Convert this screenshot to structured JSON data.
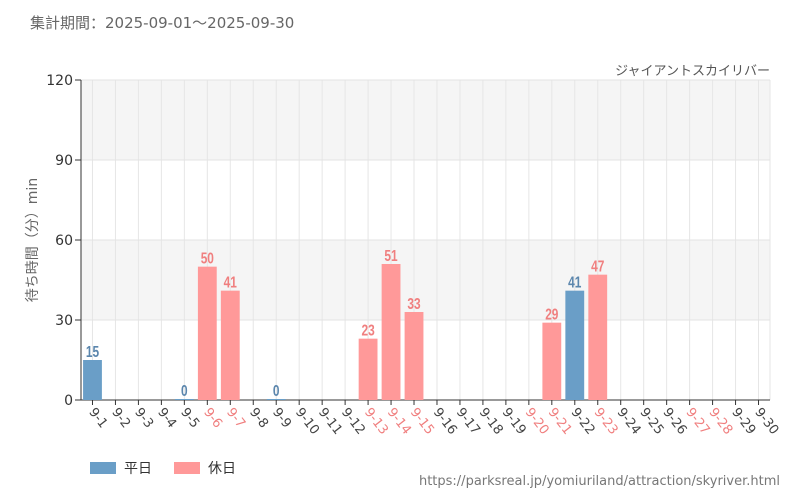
{
  "header": {
    "period_label": "集計期間：2025-09-01～2025-09-30",
    "attraction_name": "ジャイアントスカイリバー"
  },
  "source_url": "https://parksreal.jp/yomiuriland/attraction/skyriver.html",
  "chart_data": {
    "type": "bar",
    "ylabel": "待ち時間（分）min",
    "ylim": [
      0,
      120
    ],
    "yticks": [
      0,
      30,
      60,
      90,
      120
    ],
    "categories": [
      "9-1",
      "9-2",
      "9-3",
      "9-4",
      "9-5",
      "9-6",
      "9-7",
      "9-8",
      "9-9",
      "9-10",
      "9-11",
      "9-12",
      "9-13",
      "9-14",
      "9-15",
      "9-16",
      "9-17",
      "9-18",
      "9-19",
      "9-20",
      "9-21",
      "9-22",
      "9-23",
      "9-24",
      "9-25",
      "9-26",
      "9-27",
      "9-28",
      "9-29",
      "9-30"
    ],
    "values": [
      15,
      null,
      null,
      null,
      0,
      50,
      41,
      null,
      0,
      null,
      null,
      null,
      23,
      51,
      33,
      null,
      null,
      null,
      null,
      null,
      29,
      41,
      47,
      null,
      null,
      null,
      null,
      null,
      null,
      null
    ],
    "day_type": [
      "weekday",
      "weekday",
      "weekday",
      "weekday",
      "weekday",
      "holiday",
      "holiday",
      "weekday",
      "weekday",
      "weekday",
      "weekday",
      "weekday",
      "holiday",
      "holiday",
      "holiday",
      "weekday",
      "weekday",
      "weekday",
      "weekday",
      "holiday",
      "holiday",
      "weekday",
      "holiday",
      "weekday",
      "weekday",
      "weekday",
      "holiday",
      "holiday",
      "weekday",
      "weekday"
    ],
    "legend": [
      {
        "key": "weekday",
        "label": "平日",
        "color": "#6a9ec7"
      },
      {
        "key": "holiday",
        "label": "休日",
        "color": "#ff9999"
      }
    ],
    "label_colors": {
      "weekday": "#5b86ad",
      "holiday": "#f07f7f",
      "tick_weekday": "#444444",
      "tick_holiday": "#f07f7f"
    },
    "grid": true
  }
}
